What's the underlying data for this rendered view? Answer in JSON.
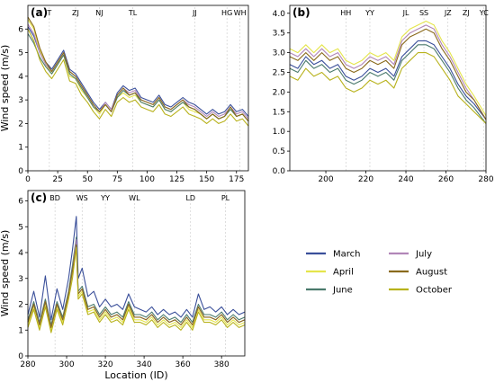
{
  "chart_data": [
    {
      "panel": "(a)",
      "type": "line",
      "ylabel": "Wind speed (m/s)",
      "xlim": [
        0,
        185
      ],
      "ylim": [
        0,
        7
      ],
      "xticks": [
        0,
        25,
        50,
        75,
        100,
        125,
        150,
        175
      ],
      "yticks": [
        0,
        1,
        2,
        3,
        4,
        5,
        6
      ],
      "annotations": [
        {
          "x": 18,
          "label": "T"
        },
        {
          "x": 40,
          "label": "ZJ"
        },
        {
          "x": 60,
          "label": "NJ"
        },
        {
          "x": 88,
          "label": "TL"
        },
        {
          "x": 140,
          "label": "JJ"
        },
        {
          "x": 167,
          "label": "HG"
        },
        {
          "x": 178,
          "label": "WH"
        }
      ],
      "x": [
        0,
        5,
        10,
        15,
        20,
        25,
        30,
        35,
        40,
        45,
        50,
        55,
        60,
        65,
        70,
        75,
        80,
        85,
        90,
        95,
        100,
        105,
        110,
        115,
        120,
        125,
        130,
        135,
        140,
        145,
        150,
        155,
        160,
        165,
        170,
        175,
        180,
        185
      ],
      "series": [
        {
          "name": "March",
          "color": "#3a4f9a",
          "values": [
            6.1,
            5.7,
            5.0,
            4.6,
            4.3,
            4.7,
            5.1,
            4.3,
            4.1,
            3.7,
            3.3,
            2.9,
            2.6,
            2.9,
            2.6,
            3.3,
            3.6,
            3.4,
            3.5,
            3.1,
            3.0,
            2.9,
            3.2,
            2.8,
            2.7,
            2.9,
            3.1,
            2.9,
            2.8,
            2.6,
            2.4,
            2.6,
            2.4,
            2.5,
            2.8,
            2.5,
            2.6,
            2.3
          ]
        },
        {
          "name": "April",
          "color": "#e5e54c",
          "values": [
            6.4,
            6.0,
            5.1,
            4.5,
            4.1,
            4.5,
            4.9,
            4.0,
            3.9,
            3.4,
            3.1,
            2.7,
            2.4,
            2.8,
            2.5,
            3.1,
            3.3,
            3.1,
            3.2,
            2.9,
            2.8,
            2.7,
            3.0,
            2.6,
            2.5,
            2.7,
            2.9,
            2.6,
            2.5,
            2.4,
            2.2,
            2.4,
            2.2,
            2.3,
            2.6,
            2.3,
            2.4,
            2.1
          ]
        },
        {
          "name": "June",
          "color": "#4a7a6c",
          "values": [
            5.8,
            5.4,
            4.8,
            4.4,
            4.1,
            4.5,
            4.9,
            4.1,
            3.9,
            3.5,
            3.1,
            2.7,
            2.5,
            2.8,
            2.5,
            3.1,
            3.4,
            3.2,
            3.3,
            2.9,
            2.8,
            2.7,
            3.0,
            2.6,
            2.5,
            2.7,
            2.9,
            2.7,
            2.6,
            2.4,
            2.2,
            2.4,
            2.2,
            2.3,
            2.6,
            2.3,
            2.4,
            2.1
          ]
        },
        {
          "name": "July",
          "color": "#b186b8",
          "values": [
            6.2,
            5.8,
            5.0,
            4.5,
            4.2,
            4.6,
            5.0,
            4.2,
            4.0,
            3.6,
            3.2,
            2.8,
            2.5,
            2.9,
            2.6,
            3.2,
            3.5,
            3.3,
            3.4,
            3.0,
            2.9,
            2.8,
            3.1,
            2.7,
            2.6,
            2.8,
            3.0,
            2.8,
            2.7,
            2.5,
            2.3,
            2.5,
            2.3,
            2.4,
            2.7,
            2.4,
            2.5,
            2.2
          ]
        },
        {
          "name": "August",
          "color": "#8a6a1c",
          "values": [
            6.5,
            6.1,
            5.2,
            4.6,
            4.2,
            4.6,
            5.0,
            4.2,
            4.0,
            3.6,
            3.2,
            2.8,
            2.5,
            2.8,
            2.5,
            3.2,
            3.5,
            3.2,
            3.3,
            3.0,
            2.9,
            2.8,
            3.1,
            2.7,
            2.6,
            2.8,
            3.0,
            2.7,
            2.6,
            2.4,
            2.2,
            2.4,
            2.2,
            2.3,
            2.7,
            2.3,
            2.4,
            2.1
          ]
        },
        {
          "name": "October",
          "color": "#b8b21c",
          "values": [
            6.0,
            5.5,
            4.7,
            4.2,
            3.9,
            4.3,
            4.7,
            3.8,
            3.7,
            3.2,
            2.9,
            2.5,
            2.2,
            2.6,
            2.3,
            2.9,
            3.1,
            2.9,
            3.0,
            2.7,
            2.6,
            2.5,
            2.8,
            2.4,
            2.3,
            2.5,
            2.7,
            2.4,
            2.3,
            2.2,
            2.0,
            2.2,
            2.0,
            2.1,
            2.4,
            2.1,
            2.2,
            1.9
          ]
        }
      ]
    },
    {
      "panel": "(b)",
      "type": "line",
      "xlim": [
        182,
        280
      ],
      "ylim": [
        0,
        4.2
      ],
      "xticks": [
        200,
        220,
        240,
        260,
        280
      ],
      "yticks": [
        0.0,
        0.5,
        1.0,
        1.5,
        2.0,
        2.5,
        3.0,
        3.5,
        4.0
      ],
      "annotations": [
        {
          "x": 210,
          "label": "HH"
        },
        {
          "x": 222,
          "label": "YY"
        },
        {
          "x": 240,
          "label": "JL"
        },
        {
          "x": 249,
          "label": "SS"
        },
        {
          "x": 261,
          "label": "JZ"
        },
        {
          "x": 270,
          "label": "ZJ"
        },
        {
          "x": 279,
          "label": "YC"
        }
      ],
      "x": [
        182,
        186,
        190,
        194,
        198,
        202,
        206,
        210,
        214,
        218,
        222,
        226,
        230,
        234,
        238,
        242,
        246,
        250,
        254,
        258,
        262,
        266,
        270,
        274,
        280
      ],
      "series": [
        {
          "name": "March",
          "color": "#3a4f9a",
          "values": [
            2.7,
            2.6,
            2.9,
            2.7,
            2.8,
            2.6,
            2.7,
            2.4,
            2.3,
            2.4,
            2.6,
            2.5,
            2.6,
            2.4,
            2.9,
            3.1,
            3.3,
            3.3,
            3.2,
            2.9,
            2.6,
            2.2,
            1.9,
            1.7,
            1.3
          ]
        },
        {
          "name": "April",
          "color": "#e5e54c",
          "values": [
            3.1,
            3.0,
            3.2,
            3.0,
            3.2,
            3.0,
            3.1,
            2.8,
            2.7,
            2.8,
            3.0,
            2.9,
            3.0,
            2.8,
            3.4,
            3.6,
            3.7,
            3.8,
            3.7,
            3.3,
            3.0,
            2.6,
            2.2,
            1.9,
            1.4
          ]
        },
        {
          "name": "June",
          "color": "#4a7a6c",
          "values": [
            2.6,
            2.5,
            2.8,
            2.6,
            2.7,
            2.5,
            2.6,
            2.3,
            2.2,
            2.3,
            2.5,
            2.4,
            2.5,
            2.3,
            2.8,
            3.0,
            3.2,
            3.2,
            3.1,
            2.8,
            2.5,
            2.1,
            1.8,
            1.6,
            1.2
          ]
        },
        {
          "name": "July",
          "color": "#b186b8",
          "values": [
            3.0,
            2.9,
            3.1,
            2.9,
            3.1,
            2.9,
            3.0,
            2.7,
            2.6,
            2.7,
            2.9,
            2.8,
            2.9,
            2.7,
            3.3,
            3.5,
            3.6,
            3.7,
            3.6,
            3.2,
            2.9,
            2.5,
            2.1,
            1.8,
            1.3
          ]
        },
        {
          "name": "August",
          "color": "#8a6a1c",
          "values": [
            2.9,
            2.8,
            3.0,
            2.8,
            3.0,
            2.8,
            2.9,
            2.6,
            2.5,
            2.6,
            2.8,
            2.7,
            2.8,
            2.6,
            3.2,
            3.4,
            3.5,
            3.6,
            3.5,
            3.1,
            2.8,
            2.4,
            2.0,
            1.8,
            1.3
          ]
        },
        {
          "name": "October",
          "color": "#b8b21c",
          "values": [
            2.4,
            2.3,
            2.6,
            2.4,
            2.5,
            2.3,
            2.4,
            2.1,
            2.0,
            2.1,
            2.3,
            2.2,
            2.3,
            2.1,
            2.6,
            2.8,
            3.0,
            3.0,
            2.9,
            2.6,
            2.3,
            1.9,
            1.7,
            1.5,
            1.2
          ]
        }
      ]
    },
    {
      "panel": "(c)",
      "type": "line",
      "ylabel": "Wind speed (m/s)",
      "xlabel": "Location (ID)",
      "xlim": [
        280,
        392
      ],
      "ylim": [
        0,
        6.4
      ],
      "xticks": [
        280,
        300,
        320,
        340,
        360,
        380
      ],
      "yticks": [
        0,
        1,
        2,
        3,
        4,
        5,
        6
      ],
      "annotations": [
        {
          "x": 294,
          "label": "BD"
        },
        {
          "x": 308,
          "label": "WS"
        },
        {
          "x": 320,
          "label": "YY"
        },
        {
          "x": 335,
          "label": "WL"
        },
        {
          "x": 364,
          "label": "LD"
        },
        {
          "x": 382,
          "label": "PL"
        }
      ],
      "x": [
        280,
        283,
        286,
        289,
        292,
        295,
        298,
        301,
        303,
        305,
        306,
        308,
        311,
        314,
        317,
        320,
        323,
        326,
        329,
        332,
        335,
        338,
        341,
        344,
        347,
        350,
        353,
        356,
        359,
        362,
        365,
        368,
        371,
        374,
        377,
        380,
        383,
        386,
        389,
        392
      ],
      "series": [
        {
          "name": "March",
          "color": "#3a4f9a",
          "values": [
            1.6,
            2.5,
            1.5,
            3.1,
            1.4,
            2.6,
            1.8,
            3.0,
            4.1,
            5.4,
            3.0,
            3.4,
            2.3,
            2.5,
            1.9,
            2.2,
            1.9,
            2.0,
            1.8,
            2.4,
            1.9,
            1.8,
            1.7,
            1.9,
            1.6,
            1.8,
            1.6,
            1.7,
            1.5,
            1.8,
            1.5,
            2.4,
            1.8,
            1.9,
            1.7,
            1.9,
            1.6,
            1.8,
            1.6,
            1.7
          ]
        },
        {
          "name": "April",
          "color": "#e5e54c",
          "values": [
            1.2,
            1.9,
            1.1,
            2.0,
            1.0,
            1.9,
            1.3,
            2.3,
            3.2,
            4.4,
            2.3,
            2.5,
            1.7,
            1.8,
            1.4,
            1.7,
            1.4,
            1.5,
            1.3,
            1.9,
            1.4,
            1.4,
            1.3,
            1.5,
            1.2,
            1.4,
            1.2,
            1.3,
            1.1,
            1.4,
            1.1,
            1.8,
            1.4,
            1.4,
            1.3,
            1.5,
            1.2,
            1.4,
            1.2,
            1.3
          ]
        },
        {
          "name": "June",
          "color": "#4a7a6c",
          "values": [
            1.4,
            2.1,
            1.3,
            2.2,
            1.2,
            2.1,
            1.5,
            2.5,
            3.5,
            4.6,
            2.5,
            2.7,
            1.9,
            2.0,
            1.6,
            1.9,
            1.6,
            1.7,
            1.5,
            2.1,
            1.6,
            1.6,
            1.5,
            1.7,
            1.4,
            1.6,
            1.4,
            1.5,
            1.3,
            1.6,
            1.3,
            2.0,
            1.6,
            1.6,
            1.5,
            1.7,
            1.4,
            1.6,
            1.4,
            1.5
          ]
        },
        {
          "name": "July",
          "color": "#b186b8",
          "values": [
            1.3,
            2.0,
            1.2,
            2.1,
            1.1,
            2.0,
            1.4,
            2.4,
            3.3,
            4.5,
            2.4,
            2.6,
            1.8,
            1.9,
            1.5,
            1.8,
            1.5,
            1.6,
            1.4,
            2.0,
            1.5,
            1.5,
            1.4,
            1.6,
            1.3,
            1.5,
            1.3,
            1.4,
            1.2,
            1.5,
            1.2,
            1.9,
            1.5,
            1.5,
            1.4,
            1.6,
            1.3,
            1.5,
            1.3,
            1.4
          ]
        },
        {
          "name": "August",
          "color": "#8a6a1c",
          "values": [
            1.3,
            2.0,
            1.2,
            2.1,
            1.1,
            2.0,
            1.4,
            2.4,
            3.3,
            4.3,
            2.4,
            2.6,
            1.8,
            1.9,
            1.5,
            1.8,
            1.5,
            1.6,
            1.4,
            2.0,
            1.5,
            1.5,
            1.4,
            1.6,
            1.3,
            1.5,
            1.3,
            1.4,
            1.2,
            1.5,
            1.2,
            1.9,
            1.5,
            1.5,
            1.4,
            1.6,
            1.3,
            1.5,
            1.3,
            1.4
          ]
        },
        {
          "name": "October",
          "color": "#b8b21c",
          "values": [
            1.1,
            1.8,
            1.0,
            1.9,
            0.9,
            1.8,
            1.2,
            2.2,
            3.0,
            4.2,
            2.2,
            2.4,
            1.6,
            1.7,
            1.3,
            1.6,
            1.3,
            1.4,
            1.2,
            1.8,
            1.3,
            1.3,
            1.2,
            1.4,
            1.1,
            1.3,
            1.1,
            1.2,
            1.0,
            1.3,
            1.0,
            1.7,
            1.3,
            1.3,
            1.2,
            1.4,
            1.1,
            1.3,
            1.1,
            1.2
          ]
        }
      ]
    }
  ],
  "legend": [
    {
      "name": "March",
      "color": "#3a4f9a"
    },
    {
      "name": "July",
      "color": "#b186b8"
    },
    {
      "name": "April",
      "color": "#e5e54c"
    },
    {
      "name": "August",
      "color": "#8a6a1c"
    },
    {
      "name": "June",
      "color": "#4a7a6c"
    },
    {
      "name": "October",
      "color": "#b8b21c"
    }
  ]
}
